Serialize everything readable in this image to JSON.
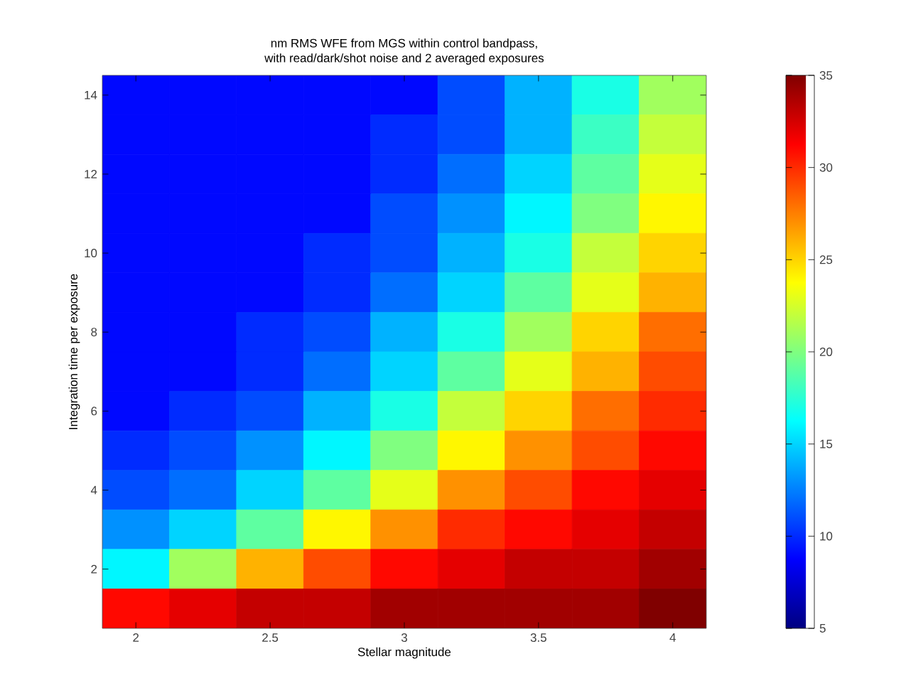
{
  "chart_data": {
    "type": "heatmap",
    "title": "nm RMS WFE from MGS within control bandpass,",
    "subtitle": "with read/dark/shot noise and 2 averaged exposures",
    "xlabel": "Stellar magnitude",
    "ylabel": "Integration time per exposure",
    "categories": [
      "2",
      null,
      "2.5",
      null,
      "3",
      null,
      "3.5",
      null,
      "4"
    ],
    "y_categories": [
      "14",
      null,
      "12",
      null,
      "10",
      null,
      "8",
      null,
      "6",
      null,
      "4",
      null,
      "2",
      null
    ],
    "cells": [
      [
        9,
        9,
        9,
        9,
        9,
        11,
        14,
        17,
        21
      ],
      [
        9,
        9,
        9,
        9,
        10,
        11,
        14,
        18,
        22
      ],
      [
        9,
        9,
        9,
        9,
        10,
        12,
        15,
        19,
        23
      ],
      [
        9,
        9,
        9,
        9,
        11,
        13,
        16,
        20,
        24
      ],
      [
        9,
        9,
        9,
        10,
        11,
        14,
        17,
        22,
        25
      ],
      [
        9,
        9,
        9,
        10,
        12,
        15,
        19,
        23,
        26
      ],
      [
        9,
        9,
        10,
        11,
        14,
        17,
        21,
        25,
        28
      ],
      [
        9,
        9,
        10,
        12,
        15,
        19,
        23,
        26,
        29
      ],
      [
        9,
        10,
        11,
        14,
        17,
        22,
        25,
        28,
        30
      ],
      [
        10,
        11,
        13,
        16,
        20,
        24,
        27,
        29,
        31
      ],
      [
        11,
        12,
        15,
        19,
        23,
        27,
        29,
        31,
        32
      ],
      [
        13,
        15,
        19,
        24,
        27,
        30,
        31,
        32,
        33
      ],
      [
        16,
        21,
        26,
        29,
        31,
        32,
        33,
        33,
        34
      ],
      [
        31,
        32,
        33,
        33,
        34,
        34,
        34,
        34,
        35
      ]
    ],
    "clim": [
      5,
      35
    ],
    "cticks": [
      5,
      10,
      15,
      20,
      25,
      30,
      35
    ]
  }
}
